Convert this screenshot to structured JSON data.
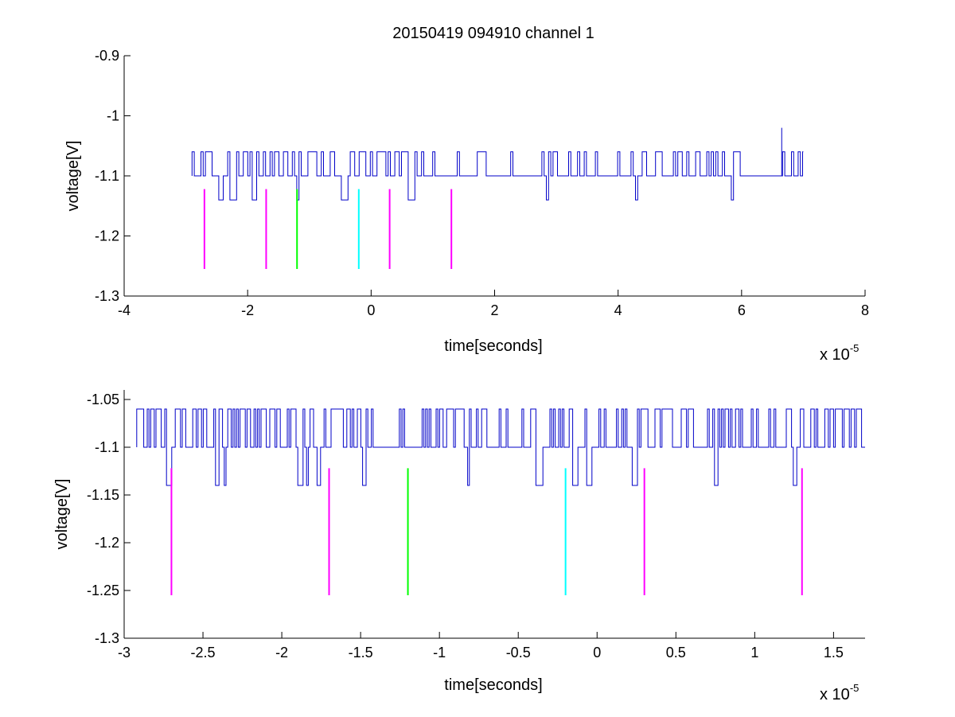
{
  "figure": {
    "title": "20150419 094910 channel 1",
    "background": "#ffffff"
  },
  "chart_data": [
    {
      "type": "line",
      "title": "20150419 094910 channel 1",
      "xlabel": "time[seconds]",
      "ylabel": "voltage[V]",
      "x_scale_label": "x 10",
      "x_scale_exponent": "-5",
      "x_multiplier": 1e-05,
      "xlim": [
        -4,
        8
      ],
      "ylim": [
        -1.3,
        -0.9
      ],
      "xticks": [
        -4,
        -2,
        0,
        2,
        4,
        6,
        8
      ],
      "xtick_labels": [
        "-4",
        "-2",
        "0",
        "2",
        "4",
        "6",
        "8"
      ],
      "yticks": [
        -1.3,
        -1.2,
        -1.1,
        -1.0,
        -0.9
      ],
      "ytick_labels": [
        "-1.3",
        "-1.2",
        "-1.1",
        "-1",
        "-0.9"
      ],
      "grid": false,
      "signal": {
        "name": "",
        "color": "#0000c8",
        "x_start": -2.9,
        "x_end": 7.0,
        "base_level": -1.1,
        "high_level": -1.06,
        "low_level": -1.14,
        "spike": {
          "x": 6.65,
          "y": -1.02
        },
        "quiet_intervals": [
          [
            0.85,
            1.55
          ],
          [
            1.8,
            2.7
          ],
          [
            3.2,
            4.2
          ],
          [
            6.05,
            6.6
          ]
        ]
      },
      "markers": [
        {
          "x": -2.7,
          "y_top": -1.122,
          "y_bottom": -1.255,
          "color": "#ff00ff"
        },
        {
          "x": -1.7,
          "y_top": -1.122,
          "y_bottom": -1.255,
          "color": "#ff00ff"
        },
        {
          "x": -1.2,
          "y_top": -1.122,
          "y_bottom": -1.255,
          "color": "#00ff00"
        },
        {
          "x": -0.2,
          "y_top": -1.122,
          "y_bottom": -1.255,
          "color": "#00ffff"
        },
        {
          "x": 0.3,
          "y_top": -1.122,
          "y_bottom": -1.255,
          "color": "#ff00ff"
        },
        {
          "x": 1.3,
          "y_top": -1.122,
          "y_bottom": -1.255,
          "color": "#ff00ff"
        }
      ]
    },
    {
      "type": "line",
      "title": "",
      "xlabel": "time[seconds]",
      "ylabel": "voltage[V]",
      "x_scale_label": "x 10",
      "x_scale_exponent": "-5",
      "x_multiplier": 1e-05,
      "xlim": [
        -3.0,
        1.7
      ],
      "ylim": [
        -1.3,
        -1.04
      ],
      "xticks": [
        -3,
        -2.5,
        -2,
        -1.5,
        -1,
        -0.5,
        0,
        0.5,
        1,
        1.5
      ],
      "xtick_labels": [
        "-3",
        "-2.5",
        "-2",
        "-1.5",
        "-1",
        "-0.5",
        "0",
        "0.5",
        "1",
        "1.5"
      ],
      "yticks": [
        -1.3,
        -1.25,
        -1.2,
        -1.15,
        -1.1,
        -1.05
      ],
      "ytick_labels": [
        "-1.3",
        "-1.25",
        "-1.2",
        "-1.15",
        "-1.1",
        "-1.05"
      ],
      "grid": false,
      "signal": {
        "name": "",
        "color": "#0000c8",
        "x_start": -2.92,
        "x_end": 1.7,
        "base_level": -1.1,
        "high_level": -1.06,
        "low_level": -1.14,
        "quiet_intervals": [
          [
            -1.4,
            -1.28
          ],
          [
            -1.22,
            -1.12
          ],
          [
            -0.55,
            -0.45
          ],
          [
            -0.35,
            -0.3
          ],
          [
            0.04,
            0.12
          ],
          [
            0.62,
            0.72
          ]
        ]
      },
      "markers": [
        {
          "x": -2.7,
          "y_top": -1.122,
          "y_bottom": -1.255,
          "color": "#ff00ff"
        },
        {
          "x": -1.7,
          "y_top": -1.122,
          "y_bottom": -1.255,
          "color": "#ff00ff"
        },
        {
          "x": -1.2,
          "y_top": -1.122,
          "y_bottom": -1.255,
          "color": "#00ff00"
        },
        {
          "x": -0.2,
          "y_top": -1.122,
          "y_bottom": -1.255,
          "color": "#00ffff"
        },
        {
          "x": 0.3,
          "y_top": -1.122,
          "y_bottom": -1.255,
          "color": "#ff00ff"
        },
        {
          "x": 1.3,
          "y_top": -1.122,
          "y_bottom": -1.255,
          "color": "#ff00ff"
        }
      ]
    }
  ]
}
